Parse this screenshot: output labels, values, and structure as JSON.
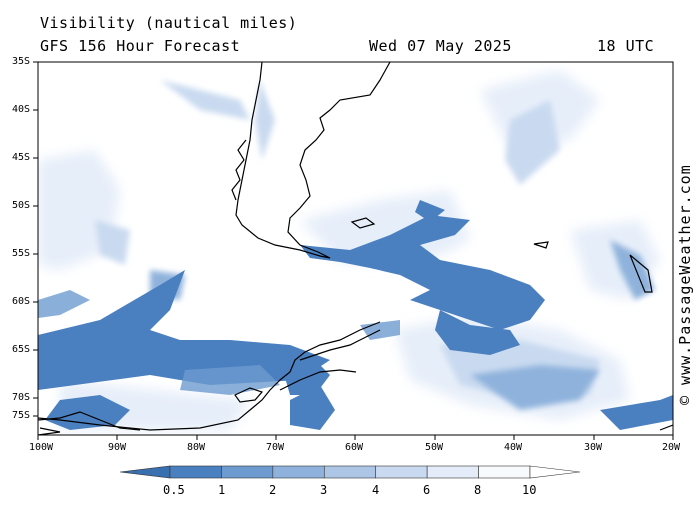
{
  "header": {
    "title": "Visibility (nautical miles)",
    "subtitle": "GFS 156 Hour Forecast",
    "date": "Wed 07 May 2025",
    "time": "18 UTC"
  },
  "credit": "© www.PassageWeather.com",
  "axes": {
    "lat_labels": [
      "35S",
      "40S",
      "45S",
      "50S",
      "55S",
      "60S",
      "65S",
      "70S",
      "75S"
    ],
    "lon_labels": [
      "100W",
      "90W",
      "80W",
      "70W",
      "60W",
      "50W",
      "40W",
      "30W",
      "20W"
    ]
  },
  "colorbar": {
    "labels": [
      "0.5",
      "1",
      "2",
      "3",
      "4",
      "6",
      "8",
      "10"
    ],
    "colors": [
      "#3a6fb0",
      "#4a7fc0",
      "#6d9bd0",
      "#8fb2dc",
      "#adc6e6",
      "#c9daf0",
      "#e3ecf8",
      "#f7fafd",
      "#ffffff"
    ]
  }
}
